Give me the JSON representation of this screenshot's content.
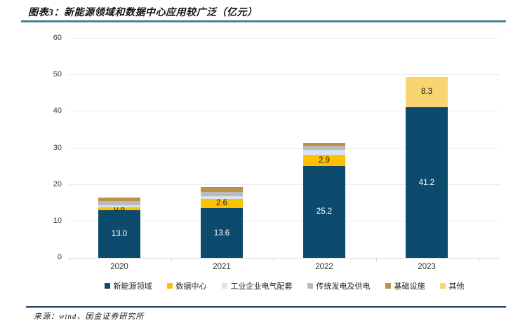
{
  "title": "图表3：新能源领域和数据中心应用较广泛（亿元）",
  "source": "来源：wind、国金证券研究所",
  "colors": {
    "rule_top": "#4E7F96",
    "rule_bottom": "#1F3864",
    "gridline": "#EAEAEA"
  },
  "chart_data": {
    "type": "bar",
    "stacked": true,
    "title": "图表3：新能源领域和数据中心应用较广泛（亿元）",
    "categories": [
      "2020",
      "2021",
      "2022",
      "2023"
    ],
    "series": [
      {
        "name": "新能源领域",
        "color": "#0D4B6E",
        "label_color": "#FFFFFF",
        "values": [
          13.0,
          13.6,
          25.2,
          41.2
        ],
        "labels": [
          "13.0",
          "13.6",
          "25.2",
          "41.2"
        ]
      },
      {
        "name": "数据中心",
        "color": "#FFC000",
        "label_color": "#1A1A1A",
        "values": [
          0.8,
          2.6,
          2.9,
          0
        ],
        "labels": [
          "0.8",
          "2.6",
          "2.9",
          null
        ]
      },
      {
        "name": "工业企业电气配套",
        "color": "#D7E4F1",
        "label_color": "#1A1A1A",
        "values": [
          0.6,
          0.7,
          1.5,
          0
        ],
        "labels": [
          null,
          null,
          null,
          null
        ]
      },
      {
        "name": "传统发电及供电",
        "color": "#BBBBBB",
        "label_color": "#1A1A1A",
        "values": [
          1.2,
          1.1,
          1.0,
          0
        ],
        "labels": [
          null,
          null,
          null,
          null
        ]
      },
      {
        "name": "基础设施",
        "color": "#B99348",
        "label_color": "#1A1A1A",
        "values": [
          0.9,
          1.3,
          0.8,
          0
        ],
        "labels": [
          null,
          null,
          null,
          null
        ]
      },
      {
        "name": "其他",
        "color": "#F9D470",
        "label_color": "#1A1A1A",
        "values": [
          0,
          0,
          0,
          8.3
        ],
        "labels": [
          null,
          null,
          null,
          "8.3"
        ]
      }
    ],
    "ylim": [
      0,
      60
    ],
    "yticks": [
      0,
      10,
      20,
      30,
      40,
      50,
      60
    ],
    "grid": true,
    "legend_position": "bottom",
    "xlabel": "",
    "ylabel": ""
  }
}
